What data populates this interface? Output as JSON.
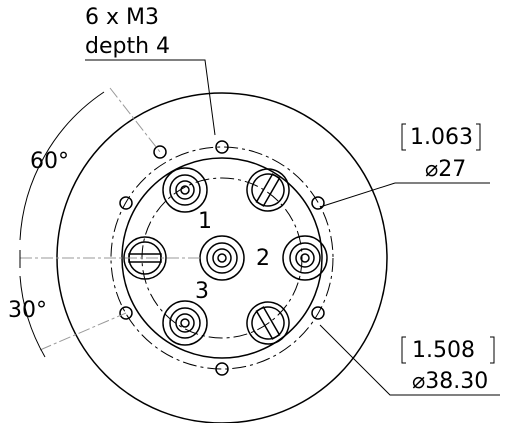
{
  "callout": {
    "line1": "6 x M3",
    "line2": "depth 4"
  },
  "angles": {
    "upper": "60°",
    "lower": "30°"
  },
  "dim_inner": {
    "inch": "1.063",
    "mm": "⌀27"
  },
  "dim_outer": {
    "inch": "1.508",
    "mm": "⌀38.30"
  },
  "labels": [
    "1",
    "2",
    "3"
  ]
}
